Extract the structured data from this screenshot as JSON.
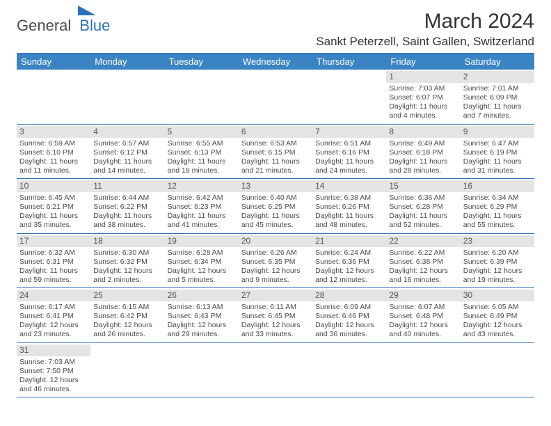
{
  "logo": {
    "text1": "General",
    "text2": "Blue"
  },
  "title": "March 2024",
  "location": "Sankt Peterzell, Saint Gallen, Switzerland",
  "day_headers": [
    "Sunday",
    "Monday",
    "Tuesday",
    "Wednesday",
    "Thursday",
    "Friday",
    "Saturday"
  ],
  "colors": {
    "header_bg": "#3b84c4",
    "header_text": "#ffffff",
    "border": "#2d72b8",
    "daynum_bg": "#e4e4e4",
    "text": "#4a4a4a"
  },
  "weeks": [
    [
      {
        "n": "",
        "sunrise": "",
        "sunset": "",
        "daylight": ""
      },
      {
        "n": "",
        "sunrise": "",
        "sunset": "",
        "daylight": ""
      },
      {
        "n": "",
        "sunrise": "",
        "sunset": "",
        "daylight": ""
      },
      {
        "n": "",
        "sunrise": "",
        "sunset": "",
        "daylight": ""
      },
      {
        "n": "",
        "sunrise": "",
        "sunset": "",
        "daylight": ""
      },
      {
        "n": "1",
        "sunrise": "Sunrise: 7:03 AM",
        "sunset": "Sunset: 6:07 PM",
        "daylight": "Daylight: 11 hours and 4 minutes."
      },
      {
        "n": "2",
        "sunrise": "Sunrise: 7:01 AM",
        "sunset": "Sunset: 6:09 PM",
        "daylight": "Daylight: 11 hours and 7 minutes."
      }
    ],
    [
      {
        "n": "3",
        "sunrise": "Sunrise: 6:59 AM",
        "sunset": "Sunset: 6:10 PM",
        "daylight": "Daylight: 11 hours and 11 minutes."
      },
      {
        "n": "4",
        "sunrise": "Sunrise: 6:57 AM",
        "sunset": "Sunset: 6:12 PM",
        "daylight": "Daylight: 11 hours and 14 minutes."
      },
      {
        "n": "5",
        "sunrise": "Sunrise: 6:55 AM",
        "sunset": "Sunset: 6:13 PM",
        "daylight": "Daylight: 11 hours and 18 minutes."
      },
      {
        "n": "6",
        "sunrise": "Sunrise: 6:53 AM",
        "sunset": "Sunset: 6:15 PM",
        "daylight": "Daylight: 11 hours and 21 minutes."
      },
      {
        "n": "7",
        "sunrise": "Sunrise: 6:51 AM",
        "sunset": "Sunset: 6:16 PM",
        "daylight": "Daylight: 11 hours and 24 minutes."
      },
      {
        "n": "8",
        "sunrise": "Sunrise: 6:49 AM",
        "sunset": "Sunset: 6:18 PM",
        "daylight": "Daylight: 11 hours and 28 minutes."
      },
      {
        "n": "9",
        "sunrise": "Sunrise: 6:47 AM",
        "sunset": "Sunset: 6:19 PM",
        "daylight": "Daylight: 11 hours and 31 minutes."
      }
    ],
    [
      {
        "n": "10",
        "sunrise": "Sunrise: 6:45 AM",
        "sunset": "Sunset: 6:21 PM",
        "daylight": "Daylight: 11 hours and 35 minutes."
      },
      {
        "n": "11",
        "sunrise": "Sunrise: 6:44 AM",
        "sunset": "Sunset: 6:22 PM",
        "daylight": "Daylight: 11 hours and 38 minutes."
      },
      {
        "n": "12",
        "sunrise": "Sunrise: 6:42 AM",
        "sunset": "Sunset: 6:23 PM",
        "daylight": "Daylight: 11 hours and 41 minutes."
      },
      {
        "n": "13",
        "sunrise": "Sunrise: 6:40 AM",
        "sunset": "Sunset: 6:25 PM",
        "daylight": "Daylight: 11 hours and 45 minutes."
      },
      {
        "n": "14",
        "sunrise": "Sunrise: 6:38 AM",
        "sunset": "Sunset: 6:26 PM",
        "daylight": "Daylight: 11 hours and 48 minutes."
      },
      {
        "n": "15",
        "sunrise": "Sunrise: 6:36 AM",
        "sunset": "Sunset: 6:28 PM",
        "daylight": "Daylight: 11 hours and 52 minutes."
      },
      {
        "n": "16",
        "sunrise": "Sunrise: 6:34 AM",
        "sunset": "Sunset: 6:29 PM",
        "daylight": "Daylight: 11 hours and 55 minutes."
      }
    ],
    [
      {
        "n": "17",
        "sunrise": "Sunrise: 6:32 AM",
        "sunset": "Sunset: 6:31 PM",
        "daylight": "Daylight: 11 hours and 59 minutes."
      },
      {
        "n": "18",
        "sunrise": "Sunrise: 6:30 AM",
        "sunset": "Sunset: 6:32 PM",
        "daylight": "Daylight: 12 hours and 2 minutes."
      },
      {
        "n": "19",
        "sunrise": "Sunrise: 6:28 AM",
        "sunset": "Sunset: 6:34 PM",
        "daylight": "Daylight: 12 hours and 5 minutes."
      },
      {
        "n": "20",
        "sunrise": "Sunrise: 6:26 AM",
        "sunset": "Sunset: 6:35 PM",
        "daylight": "Daylight: 12 hours and 9 minutes."
      },
      {
        "n": "21",
        "sunrise": "Sunrise: 6:24 AM",
        "sunset": "Sunset: 6:36 PM",
        "daylight": "Daylight: 12 hours and 12 minutes."
      },
      {
        "n": "22",
        "sunrise": "Sunrise: 6:22 AM",
        "sunset": "Sunset: 6:38 PM",
        "daylight": "Daylight: 12 hours and 16 minutes."
      },
      {
        "n": "23",
        "sunrise": "Sunrise: 6:20 AM",
        "sunset": "Sunset: 6:39 PM",
        "daylight": "Daylight: 12 hours and 19 minutes."
      }
    ],
    [
      {
        "n": "24",
        "sunrise": "Sunrise: 6:17 AM",
        "sunset": "Sunset: 6:41 PM",
        "daylight": "Daylight: 12 hours and 23 minutes."
      },
      {
        "n": "25",
        "sunrise": "Sunrise: 6:15 AM",
        "sunset": "Sunset: 6:42 PM",
        "daylight": "Daylight: 12 hours and 26 minutes."
      },
      {
        "n": "26",
        "sunrise": "Sunrise: 6:13 AM",
        "sunset": "Sunset: 6:43 PM",
        "daylight": "Daylight: 12 hours and 29 minutes."
      },
      {
        "n": "27",
        "sunrise": "Sunrise: 6:11 AM",
        "sunset": "Sunset: 6:45 PM",
        "daylight": "Daylight: 12 hours and 33 minutes."
      },
      {
        "n": "28",
        "sunrise": "Sunrise: 6:09 AM",
        "sunset": "Sunset: 6:46 PM",
        "daylight": "Daylight: 12 hours and 36 minutes."
      },
      {
        "n": "29",
        "sunrise": "Sunrise: 6:07 AM",
        "sunset": "Sunset: 6:48 PM",
        "daylight": "Daylight: 12 hours and 40 minutes."
      },
      {
        "n": "30",
        "sunrise": "Sunrise: 6:05 AM",
        "sunset": "Sunset: 6:49 PM",
        "daylight": "Daylight: 12 hours and 43 minutes."
      }
    ],
    [
      {
        "n": "31",
        "sunrise": "Sunrise: 7:03 AM",
        "sunset": "Sunset: 7:50 PM",
        "daylight": "Daylight: 12 hours and 46 minutes."
      },
      {
        "n": "",
        "sunrise": "",
        "sunset": "",
        "daylight": ""
      },
      {
        "n": "",
        "sunrise": "",
        "sunset": "",
        "daylight": ""
      },
      {
        "n": "",
        "sunrise": "",
        "sunset": "",
        "daylight": ""
      },
      {
        "n": "",
        "sunrise": "",
        "sunset": "",
        "daylight": ""
      },
      {
        "n": "",
        "sunrise": "",
        "sunset": "",
        "daylight": ""
      },
      {
        "n": "",
        "sunrise": "",
        "sunset": "",
        "daylight": ""
      }
    ]
  ]
}
